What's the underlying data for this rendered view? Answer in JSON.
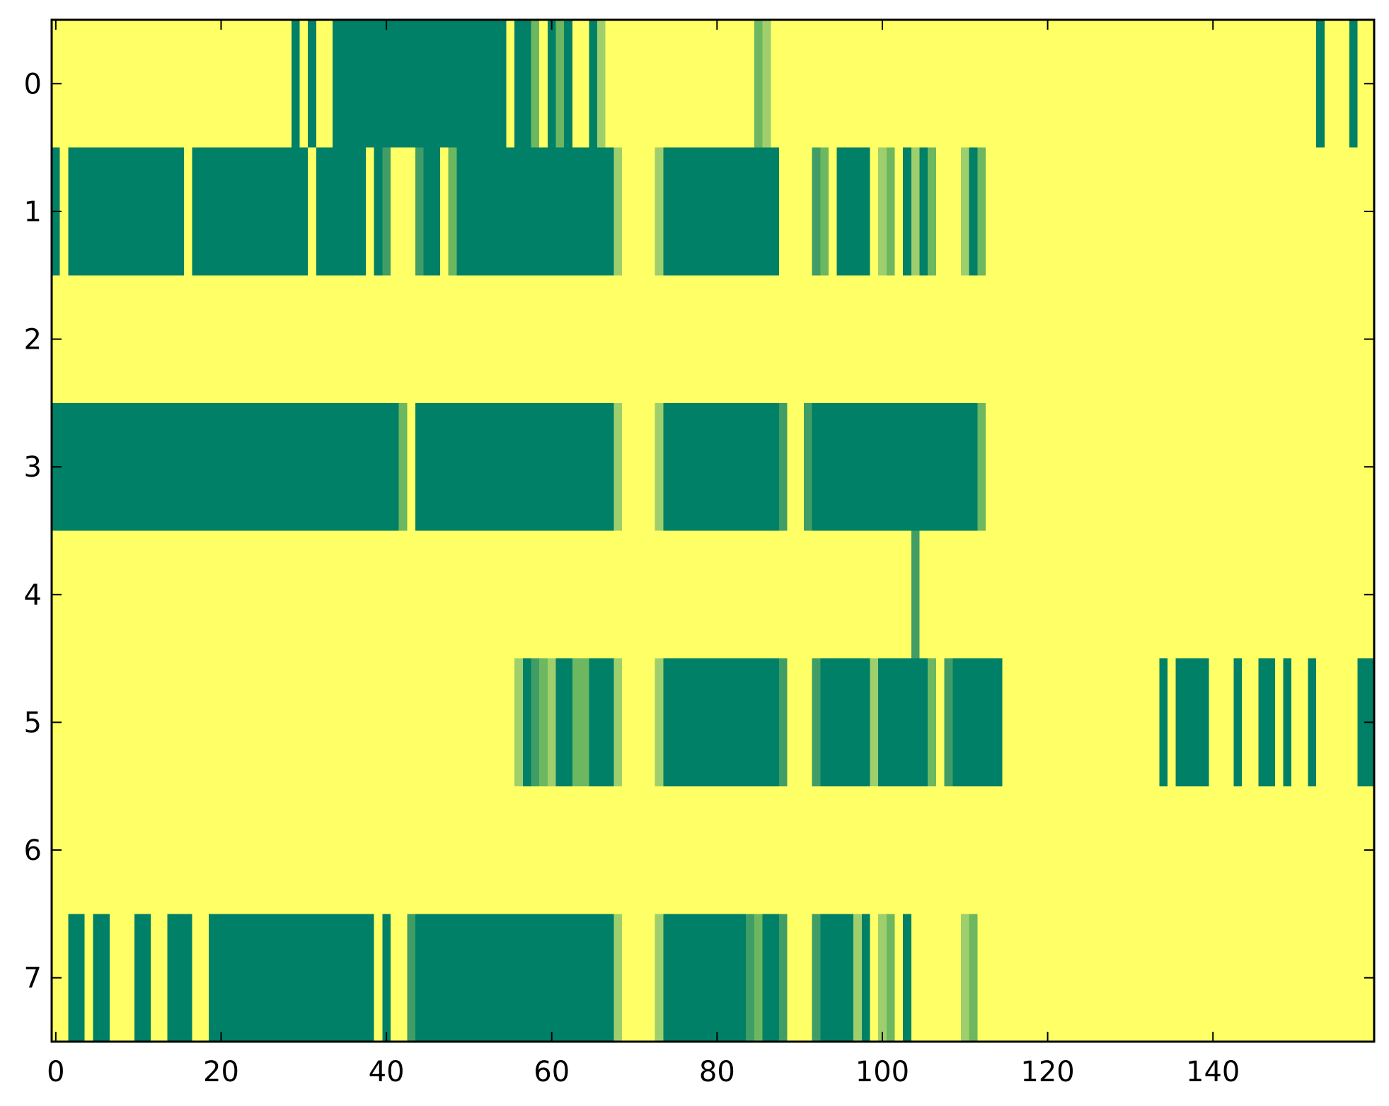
{
  "chart_data": {
    "type": "heatmap",
    "colormap": "summer_r",
    "colors": {
      "0": "#ffff66",
      "1": "#e6f26c",
      "2": "#9fcf6c",
      "3": "#6cb760",
      "4": "#409d66",
      "5": "#008066"
    },
    "xlim": [
      -0.5,
      159.5
    ],
    "ylim": [
      -0.5,
      7.5
    ],
    "x_ticks": [
      "0",
      "20",
      "40",
      "60",
      "80",
      "100",
      "120",
      "140"
    ],
    "y_ticks": [
      "0",
      "1",
      "2",
      "3",
      "4",
      "5",
      "6",
      "7"
    ],
    "grid": false,
    "description_note": "",
    "rows": [
      {
        "row": 0,
        "segments": [
          [
            29,
            29,
            5
          ],
          [
            31,
            31,
            5
          ],
          [
            34,
            54,
            5
          ],
          [
            56,
            57,
            5
          ],
          [
            58,
            58,
            3
          ],
          [
            60,
            60,
            5
          ],
          [
            61,
            61,
            3
          ],
          [
            62,
            62,
            5
          ],
          [
            65,
            65,
            5
          ],
          [
            66,
            66,
            2
          ],
          [
            85,
            85,
            3
          ],
          [
            86,
            86,
            2
          ],
          [
            153,
            153,
            5
          ],
          [
            157,
            157,
            5
          ]
        ]
      },
      {
        "row": 1,
        "segments": [
          [
            0,
            0,
            5
          ],
          [
            2,
            15,
            5
          ],
          [
            17,
            30,
            5
          ],
          [
            32,
            37,
            5
          ],
          [
            39,
            39,
            5
          ],
          [
            40,
            40,
            4
          ],
          [
            44,
            44,
            4
          ],
          [
            45,
            46,
            5
          ],
          [
            48,
            48,
            3
          ],
          [
            49,
            67,
            5
          ],
          [
            68,
            68,
            2
          ],
          [
            73,
            73,
            2
          ],
          [
            74,
            87,
            5
          ],
          [
            92,
            92,
            4
          ],
          [
            93,
            93,
            3
          ],
          [
            95,
            98,
            5
          ],
          [
            100,
            100,
            2
          ],
          [
            101,
            101,
            3
          ],
          [
            103,
            103,
            5
          ],
          [
            104,
            104,
            2
          ],
          [
            105,
            105,
            5
          ],
          [
            106,
            106,
            3
          ],
          [
            110,
            110,
            2
          ],
          [
            111,
            111,
            5
          ],
          [
            112,
            112,
            3
          ]
        ]
      },
      {
        "row": 2,
        "segments": []
      },
      {
        "row": 3,
        "segments": [
          [
            0,
            41,
            5
          ],
          [
            42,
            42,
            3
          ],
          [
            44,
            67,
            5
          ],
          [
            68,
            68,
            2
          ],
          [
            73,
            73,
            2
          ],
          [
            74,
            87,
            5
          ],
          [
            88,
            88,
            4
          ],
          [
            91,
            91,
            4
          ],
          [
            92,
            111,
            5
          ],
          [
            112,
            112,
            3
          ]
        ]
      },
      {
        "row": 4,
        "segments": [
          [
            104,
            104,
            4
          ]
        ]
      },
      {
        "row": 5,
        "segments": [
          [
            56,
            56,
            2
          ],
          [
            57,
            57,
            5
          ],
          [
            58,
            58,
            4
          ],
          [
            59,
            59,
            3
          ],
          [
            60,
            60,
            2
          ],
          [
            61,
            62,
            5
          ],
          [
            63,
            64,
            3
          ],
          [
            65,
            67,
            5
          ],
          [
            68,
            68,
            2
          ],
          [
            73,
            73,
            2
          ],
          [
            74,
            87,
            5
          ],
          [
            88,
            88,
            4
          ],
          [
            92,
            92,
            4
          ],
          [
            93,
            98,
            5
          ],
          [
            99,
            99,
            2
          ],
          [
            100,
            105,
            5
          ],
          [
            106,
            106,
            3
          ],
          [
            108,
            108,
            4
          ],
          [
            109,
            114,
            5
          ],
          [
            134,
            134,
            5
          ],
          [
            136,
            139,
            5
          ],
          [
            143,
            143,
            5
          ],
          [
            146,
            147,
            5
          ],
          [
            149,
            149,
            5
          ],
          [
            152,
            152,
            5
          ],
          [
            158,
            159,
            5
          ]
        ]
      },
      {
        "row": 6,
        "segments": []
      },
      {
        "row": 7,
        "segments": [
          [
            2,
            3,
            5
          ],
          [
            5,
            6,
            5
          ],
          [
            10,
            11,
            5
          ],
          [
            14,
            16,
            5
          ],
          [
            19,
            38,
            5
          ],
          [
            40,
            40,
            5
          ],
          [
            43,
            43,
            4
          ],
          [
            44,
            67,
            5
          ],
          [
            68,
            68,
            2
          ],
          [
            73,
            73,
            2
          ],
          [
            74,
            83,
            5
          ],
          [
            84,
            84,
            4
          ],
          [
            85,
            85,
            3
          ],
          [
            86,
            87,
            5
          ],
          [
            88,
            88,
            4
          ],
          [
            92,
            92,
            4
          ],
          [
            93,
            96,
            5
          ],
          [
            97,
            97,
            2
          ],
          [
            98,
            98,
            5
          ],
          [
            100,
            100,
            2
          ],
          [
            101,
            101,
            3
          ],
          [
            103,
            103,
            5
          ],
          [
            110,
            110,
            2
          ],
          [
            111,
            111,
            3
          ]
        ]
      }
    ]
  }
}
